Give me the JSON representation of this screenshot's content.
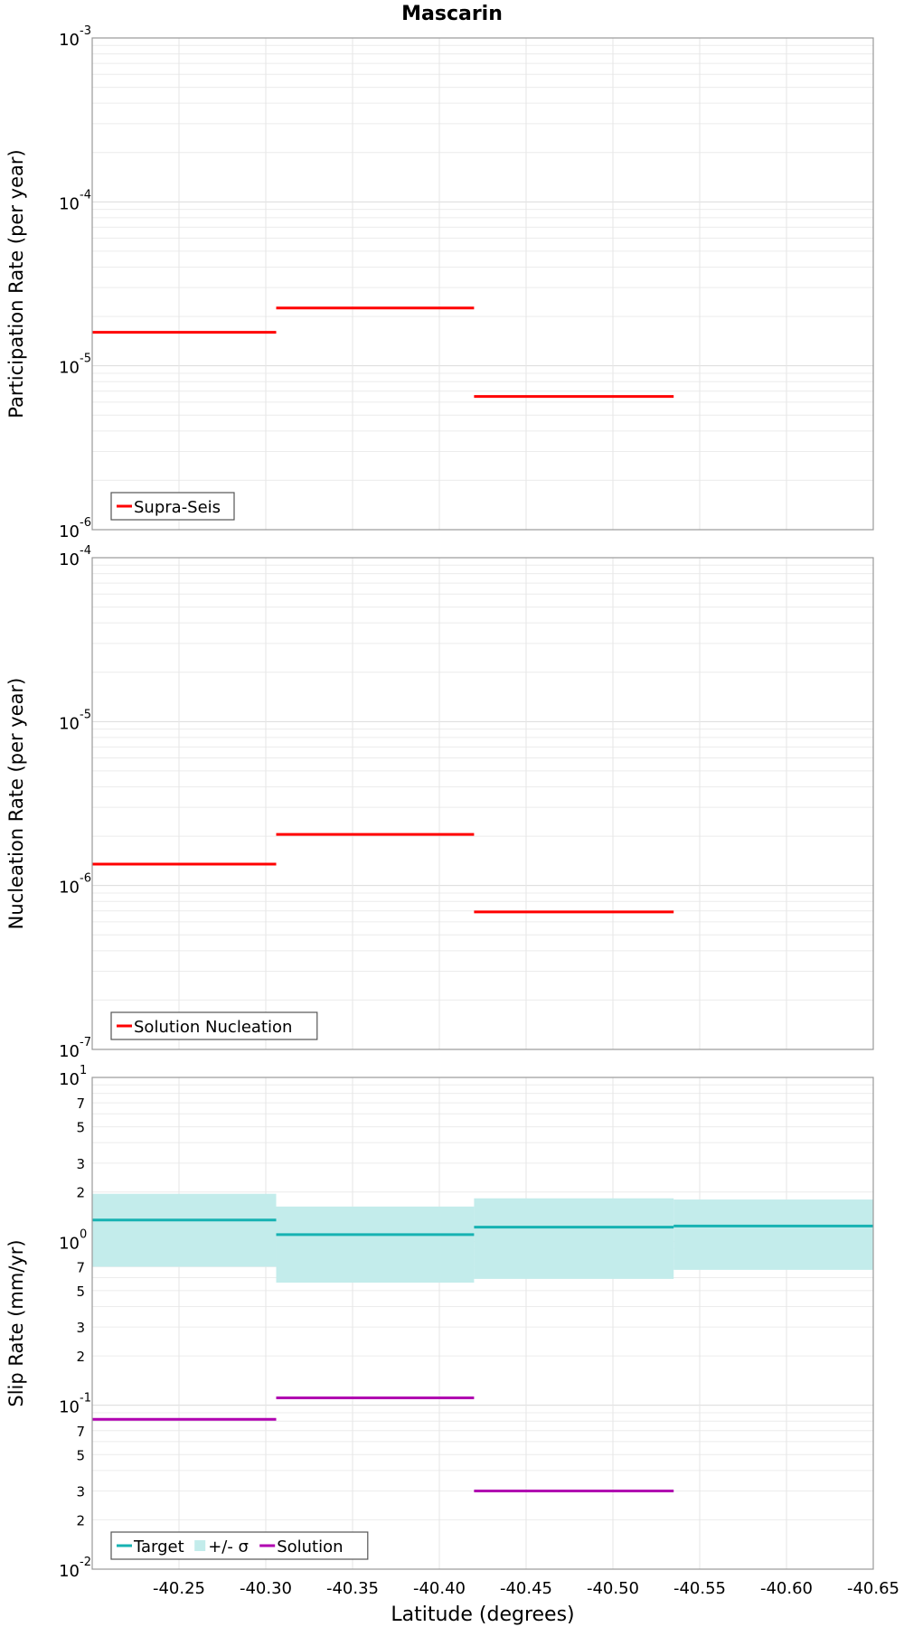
{
  "chart_data": [
    {
      "type": "line",
      "title": "Mascarin",
      "ylabel": "Participation Rate (per year)",
      "yscale": "log",
      "ylim": [
        1e-06,
        0.001
      ],
      "y_tick_labels": [
        {
          "base": "10",
          "exp": "-6"
        },
        {
          "base": "10",
          "exp": "-5"
        },
        {
          "base": "10",
          "exp": "-4"
        },
        {
          "base": "10",
          "exp": "-3"
        }
      ],
      "grid": true,
      "legend_position": "bottom-left",
      "series": [
        {
          "name": "Supra-Seis",
          "color": "#ff0000",
          "segments": [
            {
              "x": [
                -40.2,
                -40.306
              ],
              "y": 1.6e-05
            },
            {
              "x": [
                -40.306,
                -40.42
              ],
              "y": 2.25e-05
            },
            {
              "x": [
                -40.42,
                -40.535
              ],
              "y": 6.5e-06
            }
          ]
        }
      ]
    },
    {
      "type": "line",
      "ylabel": "Nucleation Rate (per year)",
      "yscale": "log",
      "ylim": [
        1e-07,
        0.0001
      ],
      "y_tick_labels": [
        {
          "base": "10",
          "exp": "-7"
        },
        {
          "base": "10",
          "exp": "-6"
        },
        {
          "base": "10",
          "exp": "-5"
        },
        {
          "base": "10",
          "exp": "-4"
        }
      ],
      "grid": true,
      "legend_position": "bottom-left",
      "series": [
        {
          "name": "Solution Nucleation",
          "color": "#ff0000",
          "segments": [
            {
              "x": [
                -40.2,
                -40.306
              ],
              "y": 1.35e-06
            },
            {
              "x": [
                -40.306,
                -40.42
              ],
              "y": 2.05e-06
            },
            {
              "x": [
                -40.42,
                -40.535
              ],
              "y": 6.9e-07
            }
          ]
        }
      ]
    },
    {
      "type": "line",
      "ylabel": "Slip Rate (mm/yr)",
      "xlabel": "Latitude (degrees)",
      "yscale": "log",
      "ylim": [
        0.01,
        10
      ],
      "xlim": [
        -40.2,
        -40.65
      ],
      "x_tick_labels": [
        "-40.25",
        "-40.30",
        "-40.35",
        "-40.40",
        "-40.45",
        "-40.50",
        "-40.55",
        "-40.60",
        "-40.65"
      ],
      "y_tick_labels": [
        {
          "base": "10",
          "exp": "-2"
        },
        {
          "base": "10",
          "exp": "-1"
        },
        {
          "base": "10",
          "exp": "0"
        },
        {
          "base": "10",
          "exp": "1"
        }
      ],
      "y_minor_tick_labels": [
        "2",
        "3",
        "5",
        "7",
        "2",
        "3",
        "5",
        "7",
        "2",
        "3",
        "5",
        "7"
      ],
      "grid": true,
      "legend_position": "bottom-left",
      "series": [
        {
          "name": "Target",
          "color": "#16b2b2",
          "segments": [
            {
              "x": [
                -40.2,
                -40.306
              ],
              "y": 1.35
            },
            {
              "x": [
                -40.306,
                -40.42
              ],
              "y": 1.1
            },
            {
              "x": [
                -40.42,
                -40.535
              ],
              "y": 1.22
            },
            {
              "x": [
                -40.535,
                -40.65
              ],
              "y": 1.24
            }
          ]
        },
        {
          "name": "+/- σ",
          "color": "#c3eceb",
          "band": [
            {
              "x": [
                -40.2,
                -40.306
              ],
              "low": 0.7,
              "high": 1.95
            },
            {
              "x": [
                -40.306,
                -40.42
              ],
              "low": 0.56,
              "high": 1.63
            },
            {
              "x": [
                -40.42,
                -40.535
              ],
              "low": 0.59,
              "high": 1.83
            },
            {
              "x": [
                -40.535,
                -40.65
              ],
              "low": 0.67,
              "high": 1.8
            }
          ]
        },
        {
          "name": "Solution",
          "color": "#b000b0",
          "segments": [
            {
              "x": [
                -40.2,
                -40.306
              ],
              "y": 0.082
            },
            {
              "x": [
                -40.306,
                -40.42
              ],
              "y": 0.111
            },
            {
              "x": [
                -40.42,
                -40.535
              ],
              "y": 0.03
            }
          ]
        }
      ]
    }
  ]
}
